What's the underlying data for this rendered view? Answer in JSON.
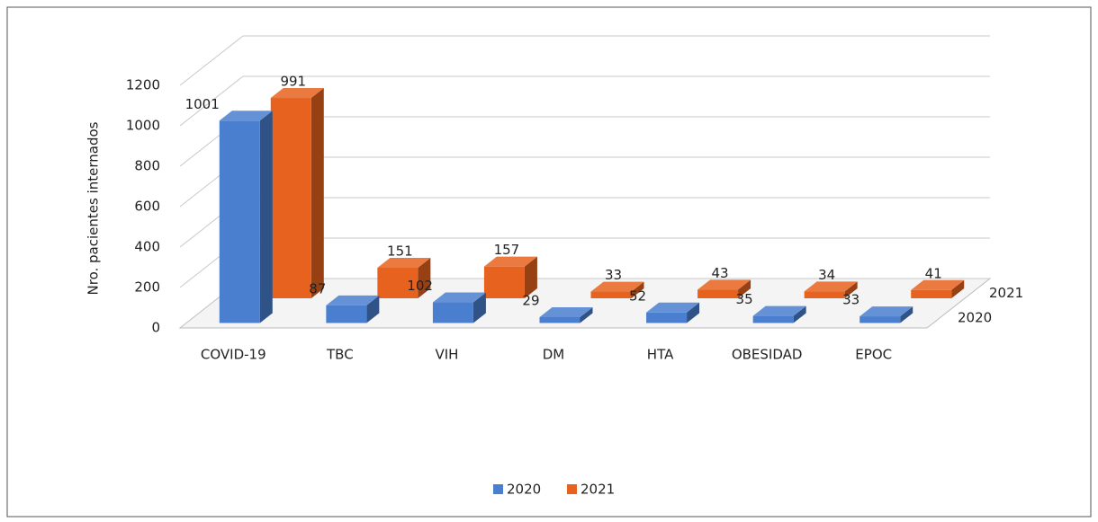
{
  "chart_data": {
    "type": "bar3d",
    "y_label": "Nro. pacientes internados",
    "categories": [
      "COVID-19",
      "TBC",
      "VIH",
      "DM",
      "HTA",
      "OBESIDAD",
      "EPOC"
    ],
    "series": [
      {
        "name": "2020",
        "color": "#4a7fd0",
        "values": [
          1001,
          87,
          102,
          29,
          52,
          35,
          33
        ]
      },
      {
        "name": "2021",
        "color": "#e8621f",
        "values": [
          991,
          151,
          157,
          33,
          43,
          34,
          41
        ]
      }
    ],
    "ylim": [
      0,
      1200
    ],
    "yticks": [
      0,
      200,
      400,
      600,
      800,
      1000,
      1200
    ],
    "grid": true
  }
}
